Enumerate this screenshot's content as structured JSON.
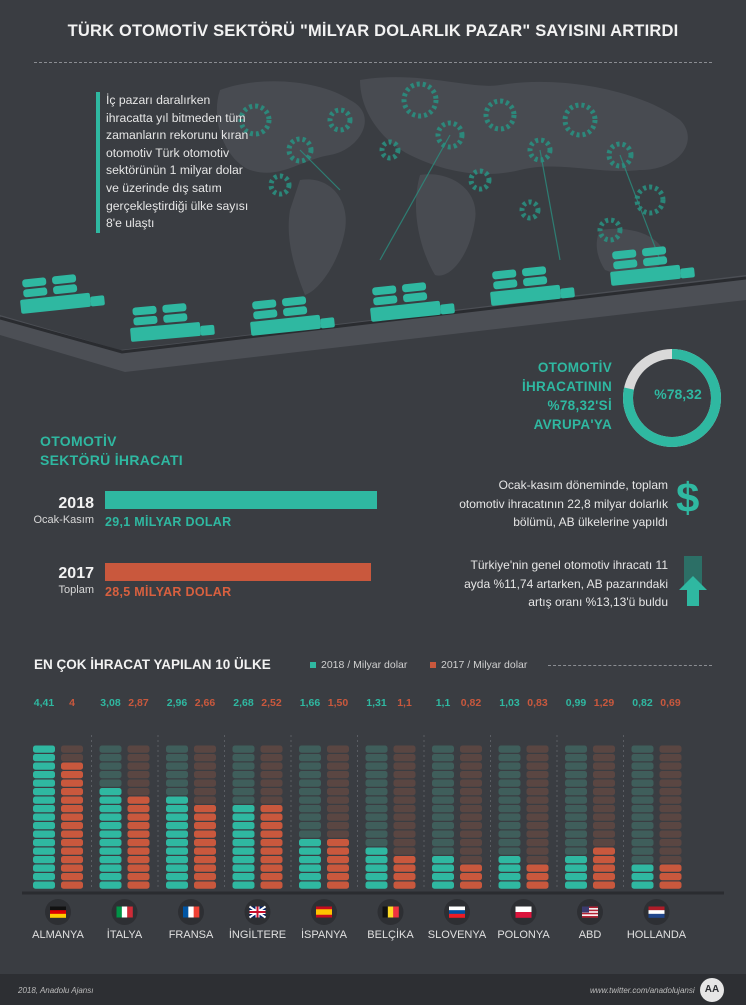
{
  "title": "TÜRK OTOMOTİV SEKTÖRÜ \"MİLYAR DOLARLIK PAZAR\" SAYISINI ARTIRDI",
  "intro": "İç pazarı daralırken ihracatta yıl bitmeden tüm zamanların rekorunu kıran otomotiv Türk otomotiv sektörünün 1 milyar dolar ve üzerinde dış satım gerçekleştirdiği ülke sayısı 8'e ulaştı",
  "colors": {
    "teal": "#2fb8a1",
    "orange": "#c9583d",
    "background": "#3a3d42"
  },
  "export": {
    "heading_line1": "OTOMOTİV",
    "heading_line2": "SEKTÖRÜ İHRACATI",
    "y2018": {
      "year": "2018",
      "period": "Ocak-Kasım",
      "label": "29,1 MİLYAR DOLAR",
      "value": 29.1
    },
    "y2017": {
      "year": "2017",
      "period": "Toplam",
      "label": "28,5 MİLYAR DOLAR",
      "value": 28.5
    }
  },
  "europe": {
    "line1": "OTOMOTİV",
    "line2": "İHRACATININ",
    "line3": "%78,32'Sİ",
    "line4": "AVRUPA'YA",
    "percent_label": "%78,32",
    "percent": 78.32
  },
  "notes": {
    "n1_l1": "Ocak-kasım döneminde, toplam",
    "n1_l2": "otomotiv ihracatının 22,8 milyar dolarlık",
    "n1_l3": "bölümü, AB ülkelerine yapıldı",
    "n2_l1": "Türkiye'nin genel otomotiv ihracatı 11",
    "n2_l2": "ayda %11,74 artarken, AB pazarındaki",
    "n2_l3": "artış oranı %13,13'ü buldu",
    "dollar": "$"
  },
  "top10": {
    "heading": "EN ÇOK İHRACAT YAPILAN 10 ÜLKE",
    "legend_2018": "2018 / Milyar dolar",
    "legend_2017": "2017 / Milyar dolar"
  },
  "chart_data": {
    "type": "bar",
    "title": "EN ÇOK İHRACAT YAPILAN 10 ÜLKE",
    "categories": [
      "ALMANYA",
      "İTALYA",
      "FRANSA",
      "İNGİLTERE",
      "İSPANYA",
      "BELÇİKA",
      "SLOVENYA",
      "POLONYA",
      "ABD",
      "HOLLANDA"
    ],
    "value_labels_2018": [
      "4,41",
      "3,08",
      "2,96",
      "2,68",
      "1,66",
      "1,31",
      "1,1",
      "1,03",
      "0,99",
      "0,82"
    ],
    "value_labels_2017": [
      "4",
      "2,87",
      "2,66",
      "2,52",
      "1,50",
      "1,1",
      "0,82",
      "0,83",
      "1,29",
      "0,69"
    ],
    "series": [
      {
        "name": "2018 / Milyar dolar",
        "values": [
          4.41,
          3.08,
          2.96,
          2.68,
          1.66,
          1.31,
          1.1,
          1.03,
          0.99,
          0.82
        ],
        "color": "#2fb8a1"
      },
      {
        "name": "2017 / Milyar dolar",
        "values": [
          4,
          2.87,
          2.66,
          2.52,
          1.5,
          1.1,
          0.82,
          0.83,
          1.29,
          0.69
        ],
        "color": "#c9583d"
      }
    ],
    "flags": [
      "germany",
      "italy",
      "france",
      "united-kingdom",
      "spain",
      "belgium",
      "slovenia",
      "poland",
      "usa",
      "netherlands"
    ],
    "ylim": [
      0,
      4.41
    ]
  },
  "footer": {
    "left": "2018, Anadolu Ajansı",
    "right": "www.twitter.com/anadolujansi",
    "logo": "AA"
  }
}
